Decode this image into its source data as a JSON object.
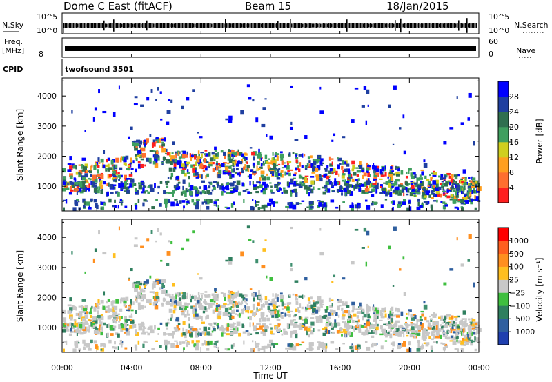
{
  "header": {
    "station": "Dome C East (fitACF)",
    "beam": "Beam 15",
    "date": "18/Jan/2015"
  },
  "noise_panel": {
    "left_label": "N.Sky",
    "left_ticks": [
      "10^5",
      "10^0"
    ],
    "right_ticks": [
      "10^5",
      "10^0"
    ],
    "right_label": "N.Search"
  },
  "freq_panel": {
    "left_label_1": "Freq.",
    "left_label_2": "[MHz]",
    "left_tick": "8",
    "right_ticks": [
      "60",
      "0"
    ],
    "right_label": "Nave"
  },
  "cpid_panel": {
    "label": "CPID",
    "program": "twofsound 3501"
  },
  "x_axis": {
    "title": "Time UT",
    "ticks": [
      "00:00",
      "04:00",
      "08:00",
      "12:00",
      "16:00",
      "20:00",
      "00:00"
    ]
  },
  "chart_data": [
    {
      "type": "heatmap",
      "panel": "power",
      "ylabel": "Slant Range [km]",
      "yticks": [
        1000,
        2000,
        3000,
        4000
      ],
      "ylim": [
        180,
        4600
      ],
      "xlim_hours": [
        0,
        24
      ],
      "colorbar": {
        "label": "Power [dB]",
        "ticks": [
          "28",
          "24",
          "20",
          "16",
          "12",
          "8",
          "4"
        ],
        "colors": [
          "#0000ff",
          "#1f3fa0",
          "#2f6f4f",
          "#3f9f5f",
          "#cfcf1f",
          "#ff9f1f",
          "#ff6f2f",
          "#ff1f1f"
        ]
      }
    },
    {
      "type": "heatmap",
      "panel": "velocity",
      "ylabel": "Slant Range [km]",
      "yticks": [
        1000,
        2000,
        3000,
        4000
      ],
      "ylim": [
        180,
        4600
      ],
      "xlim_hours": [
        0,
        24
      ],
      "colorbar": {
        "label": "Velocity [m s⁻¹]",
        "ticks": [
          "1000",
          "500",
          "100",
          "25",
          "−25",
          "−100",
          "−500",
          "−1000"
        ],
        "colors": [
          "#1f3faf",
          "#2f5f9f",
          "#2f7f5f",
          "#3fbf3f",
          "#c8c8c8",
          "#ffbf1f",
          "#ff8f1f",
          "#ff5f1f",
          "#ff0000"
        ]
      }
    }
  ]
}
